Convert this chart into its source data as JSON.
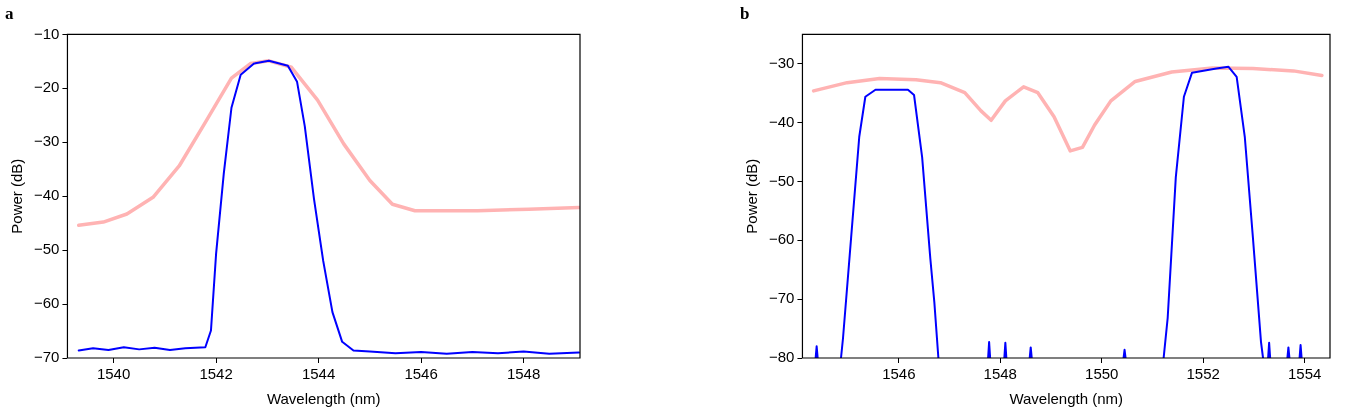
{
  "chart_data": [
    {
      "type": "line",
      "title": "a",
      "xlabel": "Wavelength (nm)",
      "ylabel": "Power (dB)",
      "xlim": [
        1539.1,
        1549.1
      ],
      "ylim": [
        -70,
        -10
      ],
      "xticks": [
        1540,
        1542,
        1544,
        1546,
        1548
      ],
      "yticks": [
        -70,
        -60,
        -50,
        -40,
        -30,
        -20,
        -10
      ],
      "grid": false,
      "marker": "none",
      "line_style": "solid",
      "series": [
        {
          "color": "#ffb3b3",
          "x": [
            1539.32,
            1539.8,
            1540.26,
            1540.77,
            1541.28,
            1541.79,
            1542.3,
            1542.67,
            1543.03,
            1543.47,
            1543.98,
            1544.49,
            1545.0,
            1545.44,
            1545.88,
            1547.1,
            1548.1,
            1549.08
          ],
          "values": [
            -45.4,
            -44.8,
            -43.3,
            -40.2,
            -34.4,
            -26.3,
            -18.1,
            -15.4,
            -14.9,
            -16.1,
            -22.2,
            -30.3,
            -37.1,
            -41.5,
            -42.7,
            -42.7,
            -42.4,
            -42.1
          ]
        },
        {
          "color": "#0000ff",
          "x": [
            1539.32,
            1539.6,
            1539.9,
            1540.2,
            1540.5,
            1540.8,
            1541.1,
            1541.4,
            1541.79,
            1541.9,
            1542.0,
            1542.15,
            1542.3,
            1542.48,
            1542.74,
            1543.03,
            1543.4,
            1543.58,
            1543.73,
            1543.91,
            1544.09,
            1544.27,
            1544.46,
            1544.68,
            1545.0,
            1545.5,
            1546.0,
            1546.5,
            1547.0,
            1547.5,
            1548.0,
            1548.5,
            1549.08
          ],
          "values": [
            -68.6,
            -68.2,
            -68.5,
            -68.0,
            -68.4,
            -68.1,
            -68.5,
            -68.2,
            -68.0,
            -64.9,
            -50.7,
            -35.8,
            -23.6,
            -17.5,
            -15.4,
            -14.9,
            -15.8,
            -18.8,
            -27,
            -40.5,
            -52,
            -61.5,
            -67,
            -68.6,
            -68.8,
            -69.1,
            -68.9,
            -69.2,
            -68.9,
            -69.1,
            -68.8,
            -69.2,
            -69.0
          ]
        }
      ]
    },
    {
      "type": "line",
      "title": "b",
      "xlabel": "Wavelength (nm)",
      "ylabel": "Power (dB)",
      "xlim": [
        1544.1,
        1554.5
      ],
      "ylim": [
        -80,
        -25
      ],
      "xticks": [
        1546,
        1548,
        1550,
        1552,
        1554
      ],
      "yticks": [
        -80,
        -70,
        -60,
        -50,
        -40,
        -30
      ],
      "grid": false,
      "marker": "none",
      "line_style": "solid",
      "series": [
        {
          "color": "#ffb3b3",
          "x": [
            1544.32,
            1544.98,
            1545.62,
            1546.34,
            1546.82,
            1547.3,
            1547.62,
            1547.82,
            1548.1,
            1548.46,
            1548.74,
            1549.06,
            1549.38,
            1549.62,
            1549.86,
            1550.18,
            1550.66,
            1551.38,
            1552.18,
            1552.98,
            1553.78,
            1554.34
          ],
          "values": [
            -34.6,
            -33.2,
            -32.5,
            -32.7,
            -33.2,
            -34.9,
            -38,
            -39.6,
            -36.3,
            -33.9,
            -34.9,
            -39,
            -44.8,
            -44.2,
            -40.4,
            -36.3,
            -33,
            -31.4,
            -30.7,
            -30.8,
            -31.2,
            -32
          ]
        },
        {
          "color": "#0000ff",
          "x": [
            1544.36,
            1544.38,
            1544.4,
            1544.41,
            1544.86,
            1544.9,
            1545.06,
            1545.22,
            1545.34,
            1545.54,
            1546.18,
            1546.3,
            1546.46,
            1546.62,
            1546.7,
            1546.78,
            1546.79,
            1547.76,
            1547.78,
            1547.8,
            1547.81,
            1548.08,
            1548.1,
            1548.12,
            1548.13,
            1548.58,
            1548.6,
            1548.62,
            1548.63,
            1550.43,
            1550.45,
            1550.47,
            1550.48,
            1551.22,
            1551.3,
            1551.46,
            1551.62,
            1551.78,
            1552.26,
            1552.5,
            1552.66,
            1552.82,
            1552.98,
            1553.14,
            1553.18,
            1553.19,
            1553.28,
            1553.3,
            1553.32,
            1553.33,
            1553.66,
            1553.68,
            1553.7,
            1553.71,
            1553.9,
            1553.92,
            1553.94
          ],
          "values": [
            -80,
            -78,
            -80,
            null,
            -80,
            -76.6,
            -59.5,
            -42.4,
            -35.6,
            -34.4,
            -34.4,
            -35.3,
            -45.9,
            -63,
            -70.5,
            -80,
            null,
            -80,
            -77.3,
            -80,
            null,
            -80,
            -77.4,
            -80,
            null,
            -80,
            -78.2,
            -80,
            null,
            -80,
            -78.6,
            -80,
            null,
            -80,
            -73.2,
            -49.3,
            -35.6,
            -31.5,
            -30.8,
            -30.5,
            -32.2,
            -42.4,
            -59.5,
            -77.3,
            -80,
            null,
            -80,
            -77.4,
            -80,
            null,
            -80,
            -78.2,
            -80,
            null,
            -80,
            -77.8,
            -80
          ]
        }
      ]
    }
  ]
}
